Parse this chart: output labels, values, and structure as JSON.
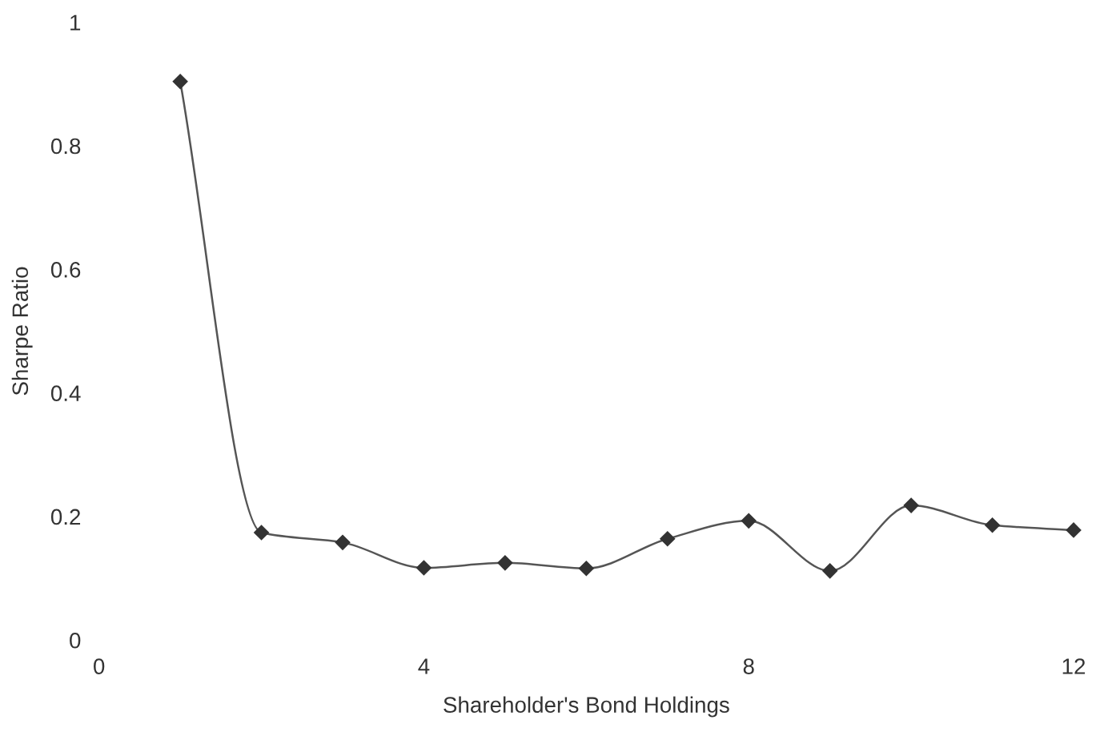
{
  "chart_data": {
    "type": "line",
    "xlabel": "Shareholder's Bond Holdings",
    "ylabel": "Sharpe Ratio",
    "x": [
      1,
      2,
      3,
      4,
      5,
      6,
      7,
      8,
      9,
      10,
      11,
      12
    ],
    "series": [
      {
        "color": "#333333",
        "values": [
          0.904,
          0.174,
          0.158,
          0.117,
          0.125,
          0.116,
          0.164,
          0.193,
          0.112,
          0.218,
          0.186,
          0.178
        ]
      }
    ],
    "xlim": [
      0,
      12
    ],
    "ylim": [
      0,
      1
    ],
    "xticks": [
      0,
      4,
      8,
      12
    ],
    "yticks": [
      0,
      0.2,
      0.4,
      0.6,
      0.8,
      1
    ],
    "marker": "diamond",
    "line_style": "solid",
    "grid": false
  }
}
